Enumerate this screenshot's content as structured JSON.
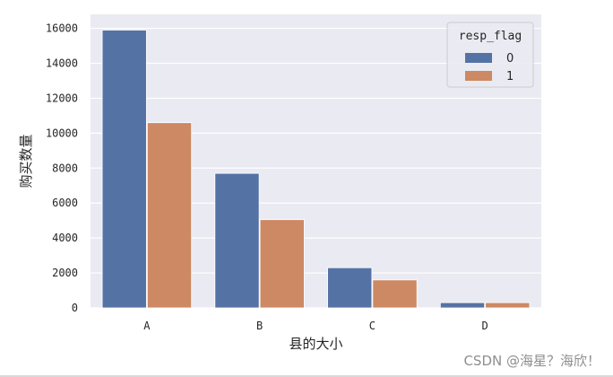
{
  "chart_data": {
    "type": "bar",
    "categories": [
      "A",
      "B",
      "C",
      "D"
    ],
    "series": [
      {
        "name": "0",
        "color": "#5572a4",
        "values": [
          15900,
          7700,
          2300,
          300
        ]
      },
      {
        "name": "1",
        "color": "#cc8963",
        "values": [
          10600,
          5050,
          1600,
          300
        ]
      }
    ],
    "xlabel": "县的大小",
    "ylabel": "购买数量",
    "ylim": [
      0,
      16800
    ],
    "yticks": [
      0,
      2000,
      4000,
      6000,
      8000,
      10000,
      12000,
      14000,
      16000
    ],
    "legend": {
      "title": "resp_flag",
      "placement": "top-right"
    },
    "grid": true,
    "style": {
      "background": "#eaeaf2",
      "grid_color": "#ffffff"
    }
  },
  "watermark": "CSDN @海星？海欣！"
}
